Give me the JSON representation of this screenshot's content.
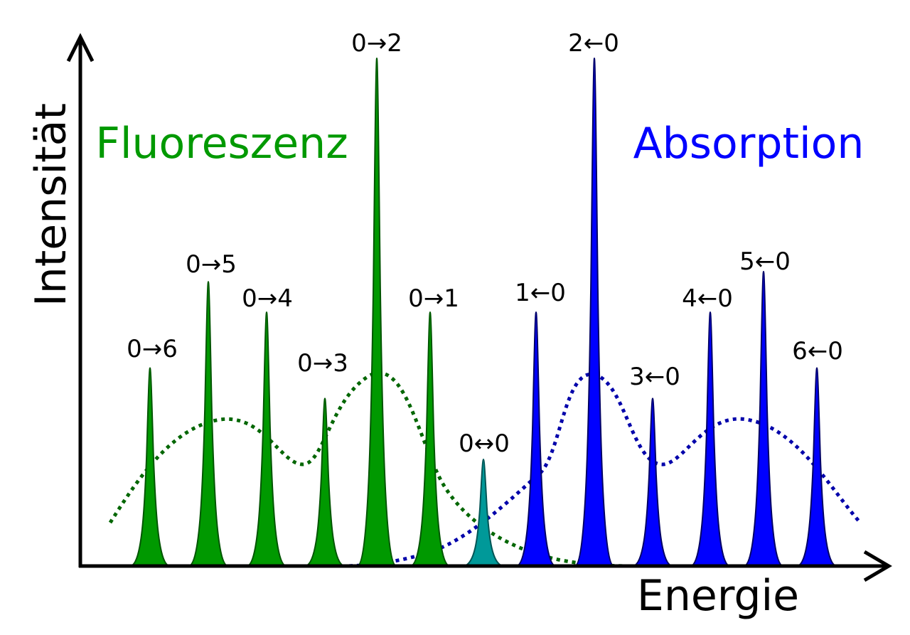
{
  "axes": {
    "x_label": "Energie",
    "y_label": "Intensität"
  },
  "fluorescence": {
    "title": "Fluoreszenz",
    "color": "#009900",
    "outline_color": "#005500",
    "envelope_color": "#006600",
    "peaks": [
      {
        "label": "0→6",
        "relative_intensity": 0.39
      },
      {
        "label": "0→5",
        "relative_intensity": 0.56
      },
      {
        "label": "0→4",
        "relative_intensity": 0.5
      },
      {
        "label": "0→3",
        "relative_intensity": 0.33
      },
      {
        "label": "0→2",
        "relative_intensity": 1.0
      },
      {
        "label": "0→1",
        "relative_intensity": 0.5
      }
    ]
  },
  "origin": {
    "label": "0↔0",
    "color": "#009999",
    "relative_intensity": 0.21
  },
  "absorption": {
    "title": "Absorption",
    "color": "#0000ff",
    "outline_color": "#000066",
    "envelope_color": "#0000aa",
    "peaks": [
      {
        "label": "1←0",
        "relative_intensity": 0.5
      },
      {
        "label": "2←0",
        "relative_intensity": 1.0
      },
      {
        "label": "3←0",
        "relative_intensity": 0.33
      },
      {
        "label": "4←0",
        "relative_intensity": 0.5
      },
      {
        "label": "5←0",
        "relative_intensity": 0.58
      },
      {
        "label": "6←0",
        "relative_intensity": 0.39
      }
    ]
  }
}
